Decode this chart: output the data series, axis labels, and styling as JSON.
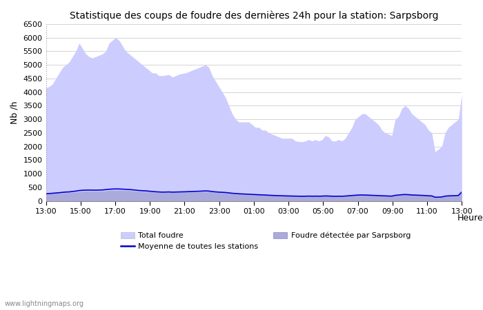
{
  "title": "Statistique des coups de foudre des dernières 24h pour la station: Sarpsborg",
  "ylabel": "Nb /h",
  "xlabel": "Heure",
  "ylim": [
    0,
    6500
  ],
  "yticks": [
    0,
    500,
    1000,
    1500,
    2000,
    2500,
    3000,
    3500,
    4000,
    4500,
    5000,
    5500,
    6000,
    6500
  ],
  "xtick_labels": [
    "13:00",
    "15:00",
    "17:00",
    "19:00",
    "21:00",
    "23:00",
    "01:00",
    "03:00",
    "05:00",
    "07:00",
    "09:00",
    "11:00",
    "13:00"
  ],
  "watermark": "www.lightningmaps.org",
  "total_foudre_color": "#ccccff",
  "local_foudre_color": "#aaaadd",
  "mean_line_color": "#0000cc",
  "background_color": "#ffffff",
  "total_foudre": [
    4150,
    4200,
    4300,
    4500,
    4700,
    4900,
    5000,
    5100,
    5300,
    5500,
    5800,
    5600,
    5400,
    5300,
    5250,
    5300,
    5350,
    5400,
    5500,
    5800,
    5900,
    6000,
    5900,
    5700,
    5500,
    5400,
    5300,
    5200,
    5100,
    5000,
    4900,
    4800,
    4700,
    4700,
    4600,
    4600,
    4620,
    4640,
    4550,
    4600,
    4650,
    4680,
    4700,
    4750,
    4800,
    4850,
    4900,
    4950,
    5000,
    4900,
    4600,
    4400,
    4200,
    4000,
    3800,
    3500,
    3200,
    3000,
    2900,
    2900,
    2900,
    2900,
    2800,
    2700,
    2700,
    2600,
    2600,
    2500,
    2450,
    2400,
    2350,
    2300,
    2300,
    2300,
    2300,
    2200,
    2180,
    2170,
    2200,
    2250,
    2200,
    2250,
    2200,
    2250,
    2400,
    2350,
    2200,
    2200,
    2250,
    2200,
    2300,
    2500,
    2700,
    3000,
    3100,
    3200,
    3200,
    3100,
    3000,
    2900,
    2800,
    2600,
    2500,
    2450,
    2400,
    3000,
    3100,
    3400,
    3500,
    3400,
    3200,
    3100,
    3000,
    2900,
    2800,
    2600,
    2500,
    1800,
    1900,
    2000,
    2500,
    2700,
    2800,
    2900,
    3000,
    3900
  ],
  "local_foudre": [
    250,
    255,
    265,
    275,
    285,
    295,
    300,
    305,
    315,
    325,
    340,
    350,
    355,
    360,
    355,
    355,
    355,
    360,
    370,
    385,
    390,
    395,
    395,
    390,
    385,
    380,
    370,
    360,
    350,
    345,
    340,
    335,
    325,
    315,
    310,
    308,
    310,
    312,
    310,
    312,
    315,
    318,
    320,
    322,
    325,
    328,
    330,
    335,
    340,
    335,
    320,
    310,
    305,
    300,
    295,
    285,
    270,
    265,
    255,
    250,
    245,
    240,
    235,
    230,
    225,
    220,
    215,
    210,
    205,
    200,
    195,
    190,
    185,
    182,
    180,
    175,
    172,
    170,
    172,
    175,
    170,
    172,
    170,
    172,
    180,
    175,
    170,
    168,
    170,
    168,
    175,
    185,
    195,
    205,
    210,
    212,
    210,
    205,
    200,
    195,
    190,
    185,
    180,
    175,
    172,
    200,
    210,
    225,
    230,
    225,
    215,
    210,
    205,
    200,
    195,
    185,
    180,
    130,
    132,
    138,
    170,
    180,
    185,
    188,
    195,
    310
  ],
  "mean_line": [
    265,
    270,
    280,
    290,
    300,
    315,
    325,
    330,
    345,
    360,
    380,
    390,
    395,
    398,
    395,
    395,
    398,
    402,
    415,
    428,
    435,
    440,
    438,
    432,
    425,
    418,
    408,
    395,
    382,
    375,
    368,
    358,
    345,
    335,
    328,
    322,
    325,
    328,
    322,
    325,
    328,
    332,
    335,
    340,
    345,
    350,
    355,
    360,
    368,
    360,
    342,
    330,
    322,
    315,
    308,
    295,
    280,
    272,
    262,
    255,
    250,
    244,
    238,
    232,
    226,
    220,
    215,
    208,
    202,
    196,
    192,
    188,
    184,
    181,
    178,
    175,
    172,
    170,
    172,
    176,
    172,
    175,
    172,
    175,
    182,
    178,
    172,
    170,
    172,
    170,
    178,
    188,
    198,
    208,
    215,
    218,
    215,
    210,
    205,
    200,
    194,
    188,
    184,
    178,
    175,
    205,
    215,
    228,
    235,
    228,
    218,
    213,
    208,
    203,
    196,
    188,
    182,
    135,
    138,
    144,
    175,
    184,
    188,
    192,
    200,
    325
  ]
}
